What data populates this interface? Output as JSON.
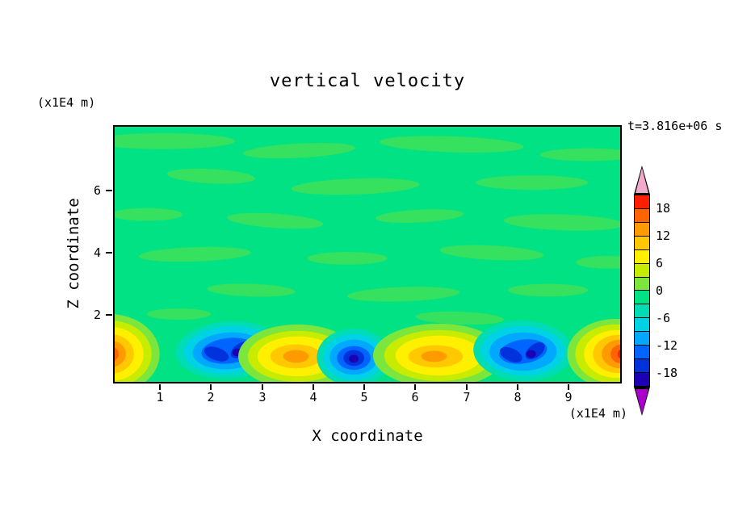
{
  "labels": {
    "title": "vertical velocity",
    "y_axis_unit": "(x1E4 m)",
    "x_axis_unit": "(x1E4 m)",
    "timestamp": "t=3.816e+06 s",
    "x_axis_title": "X coordinate",
    "y_axis_title": "Z coordinate"
  },
  "chart_data": {
    "type": "heatmap",
    "subtype": "filled-contour",
    "title": "vertical velocity",
    "xlabel": "X coordinate",
    "ylabel": "Z coordinate",
    "x_unit_note": "(x1E4 m)",
    "y_unit_note": "(x1E4 m)",
    "time_annotation": "t=3.816e+06 s",
    "x_ticks": [
      "1",
      "2",
      "3",
      "4",
      "5",
      "6",
      "7",
      "8",
      "9"
    ],
    "y_ticks": [
      "6",
      "4",
      "2"
    ],
    "x_range": [
      0,
      10
    ],
    "z_range": [
      0,
      8.3
    ],
    "grid": false,
    "legend_position": "right-colorbar",
    "background_field_color": "#00e283",
    "interior_value_range": "-3 to +3 (mottled green field over most of domain)",
    "colorbar": {
      "orientation": "vertical",
      "labels": [
        "18",
        "12",
        "6",
        "0",
        "-6",
        "-12",
        "-18"
      ],
      "contour_interval": 3,
      "range": [
        -21,
        21
      ],
      "segment_colors_top_to_bottom": [
        "#ff1e00",
        "#ff6400",
        "#ff9b00",
        "#ffc800",
        "#fff000",
        "#c8ec00",
        "#7ce63c",
        "#00e283",
        "#00dcb4",
        "#00d2e6",
        "#00a8ff",
        "#0064ff",
        "#0032dc",
        "#1e00b4"
      ],
      "over_arrow_color": "#f2aacc",
      "under_arrow_color": "#aa00cc"
    },
    "features": [
      {
        "kind": "updraft",
        "x": 0.1,
        "z": 1.0,
        "approx_peak": 15
      },
      {
        "kind": "downdraft",
        "x": 2.2,
        "z": 1.0,
        "approx_peak": -15
      },
      {
        "kind": "updraft",
        "x": 3.6,
        "z": 0.9,
        "approx_peak": 12
      },
      {
        "kind": "downdraft",
        "x": 4.7,
        "z": 0.8,
        "approx_peak": -18
      },
      {
        "kind": "updraft",
        "x": 6.4,
        "z": 0.9,
        "approx_peak": 12
      },
      {
        "kind": "downdraft",
        "x": 8.1,
        "z": 1.0,
        "approx_peak": -15
      },
      {
        "kind": "updraft",
        "x": 9.9,
        "z": 1.0,
        "approx_peak": 18
      }
    ]
  }
}
